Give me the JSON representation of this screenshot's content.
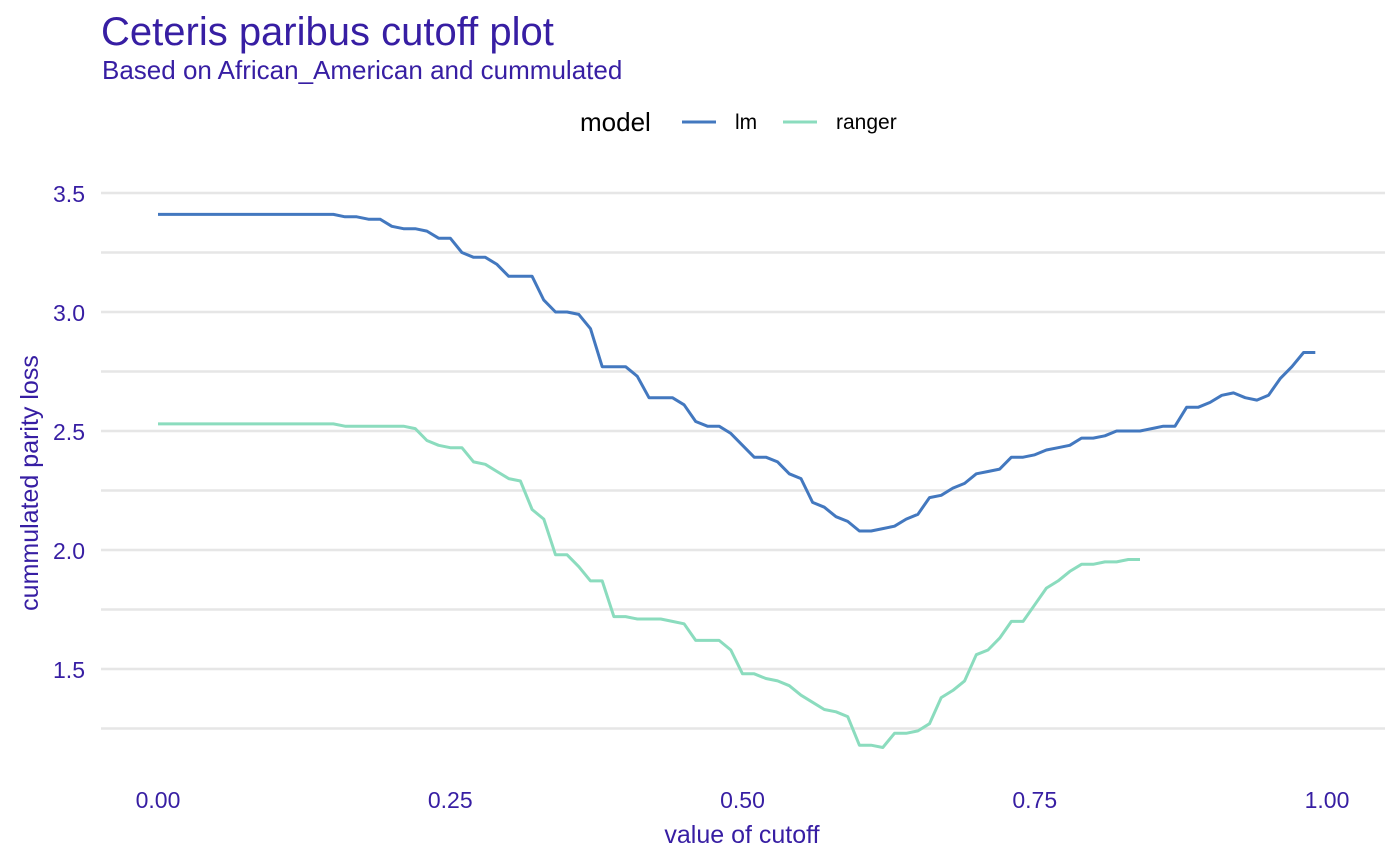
{
  "chart_data": {
    "type": "line",
    "title": "Ceteris paribus cutoff plot",
    "subtitle": "Based on African_American and cummulated",
    "xlabel": "value of cutoff",
    "ylabel": "cummulated parity loss",
    "xlim": [
      0,
      1
    ],
    "ylim": [
      1.15,
      3.55
    ],
    "x_ticks": [
      "0.00",
      "0.25",
      "0.50",
      "0.75",
      "1.00"
    ],
    "y_ticks": [
      "1.5",
      "2.0",
      "2.5",
      "3.0",
      "3.5"
    ],
    "grid": true,
    "legend": {
      "title": "model",
      "position": "top"
    },
    "series": [
      {
        "name": "lm",
        "color": "#4378BF",
        "points": [
          [
            0.0,
            3.41
          ],
          [
            0.15,
            3.41
          ],
          [
            0.16,
            3.4
          ],
          [
            0.17,
            3.4
          ],
          [
            0.18,
            3.39
          ],
          [
            0.19,
            3.39
          ],
          [
            0.2,
            3.36
          ],
          [
            0.21,
            3.35
          ],
          [
            0.22,
            3.35
          ],
          [
            0.23,
            3.34
          ],
          [
            0.24,
            3.31
          ],
          [
            0.25,
            3.31
          ],
          [
            0.26,
            3.25
          ],
          [
            0.27,
            3.23
          ],
          [
            0.28,
            3.23
          ],
          [
            0.29,
            3.2
          ],
          [
            0.3,
            3.15
          ],
          [
            0.31,
            3.15
          ],
          [
            0.32,
            3.15
          ],
          [
            0.33,
            3.05
          ],
          [
            0.34,
            3.0
          ],
          [
            0.35,
            3.0
          ],
          [
            0.36,
            2.99
          ],
          [
            0.37,
            2.93
          ],
          [
            0.38,
            2.77
          ],
          [
            0.39,
            2.77
          ],
          [
            0.4,
            2.77
          ],
          [
            0.41,
            2.73
          ],
          [
            0.42,
            2.64
          ],
          [
            0.43,
            2.64
          ],
          [
            0.44,
            2.64
          ],
          [
            0.45,
            2.61
          ],
          [
            0.46,
            2.54
          ],
          [
            0.47,
            2.52
          ],
          [
            0.48,
            2.52
          ],
          [
            0.49,
            2.49
          ],
          [
            0.5,
            2.44
          ],
          [
            0.51,
            2.39
          ],
          [
            0.52,
            2.39
          ],
          [
            0.53,
            2.37
          ],
          [
            0.54,
            2.32
          ],
          [
            0.55,
            2.3
          ],
          [
            0.56,
            2.2
          ],
          [
            0.57,
            2.18
          ],
          [
            0.58,
            2.14
          ],
          [
            0.59,
            2.12
          ],
          [
            0.6,
            2.08
          ],
          [
            0.61,
            2.08
          ],
          [
            0.62,
            2.09
          ],
          [
            0.63,
            2.1
          ],
          [
            0.64,
            2.13
          ],
          [
            0.65,
            2.15
          ],
          [
            0.66,
            2.22
          ],
          [
            0.67,
            2.23
          ],
          [
            0.68,
            2.26
          ],
          [
            0.69,
            2.28
          ],
          [
            0.7,
            2.32
          ],
          [
            0.71,
            2.33
          ],
          [
            0.72,
            2.34
          ],
          [
            0.73,
            2.39
          ],
          [
            0.74,
            2.39
          ],
          [
            0.75,
            2.4
          ],
          [
            0.76,
            2.42
          ],
          [
            0.77,
            2.43
          ],
          [
            0.78,
            2.44
          ],
          [
            0.79,
            2.47
          ],
          [
            0.8,
            2.47
          ],
          [
            0.81,
            2.48
          ],
          [
            0.82,
            2.5
          ],
          [
            0.83,
            2.5
          ],
          [
            0.84,
            2.5
          ],
          [
            0.85,
            2.51
          ],
          [
            0.86,
            2.52
          ],
          [
            0.87,
            2.52
          ],
          [
            0.88,
            2.6
          ],
          [
            0.89,
            2.6
          ],
          [
            0.9,
            2.62
          ],
          [
            0.91,
            2.65
          ],
          [
            0.92,
            2.66
          ],
          [
            0.93,
            2.64
          ],
          [
            0.94,
            2.63
          ],
          [
            0.95,
            2.65
          ],
          [
            0.96,
            2.72
          ],
          [
            0.97,
            2.77
          ],
          [
            0.98,
            2.83
          ],
          [
            0.99,
            2.83
          ]
        ]
      },
      {
        "name": "ranger",
        "color": "#8BDCBE",
        "points": [
          [
            0.0,
            2.53
          ],
          [
            0.15,
            2.53
          ],
          [
            0.16,
            2.52
          ],
          [
            0.17,
            2.52
          ],
          [
            0.18,
            2.52
          ],
          [
            0.19,
            2.52
          ],
          [
            0.2,
            2.52
          ],
          [
            0.21,
            2.52
          ],
          [
            0.22,
            2.51
          ],
          [
            0.23,
            2.46
          ],
          [
            0.24,
            2.44
          ],
          [
            0.25,
            2.43
          ],
          [
            0.26,
            2.43
          ],
          [
            0.27,
            2.37
          ],
          [
            0.28,
            2.36
          ],
          [
            0.29,
            2.33
          ],
          [
            0.3,
            2.3
          ],
          [
            0.31,
            2.29
          ],
          [
            0.32,
            2.17
          ],
          [
            0.33,
            2.13
          ],
          [
            0.34,
            1.98
          ],
          [
            0.35,
            1.98
          ],
          [
            0.36,
            1.93
          ],
          [
            0.37,
            1.87
          ],
          [
            0.38,
            1.87
          ],
          [
            0.39,
            1.72
          ],
          [
            0.4,
            1.72
          ],
          [
            0.41,
            1.71
          ],
          [
            0.42,
            1.71
          ],
          [
            0.43,
            1.71
          ],
          [
            0.44,
            1.7
          ],
          [
            0.45,
            1.69
          ],
          [
            0.46,
            1.62
          ],
          [
            0.47,
            1.62
          ],
          [
            0.48,
            1.62
          ],
          [
            0.49,
            1.58
          ],
          [
            0.5,
            1.48
          ],
          [
            0.51,
            1.48
          ],
          [
            0.52,
            1.46
          ],
          [
            0.53,
            1.45
          ],
          [
            0.54,
            1.43
          ],
          [
            0.55,
            1.39
          ],
          [
            0.56,
            1.36
          ],
          [
            0.57,
            1.33
          ],
          [
            0.58,
            1.32
          ],
          [
            0.59,
            1.3
          ],
          [
            0.6,
            1.18
          ],
          [
            0.61,
            1.18
          ],
          [
            0.62,
            1.17
          ],
          [
            0.63,
            1.23
          ],
          [
            0.64,
            1.23
          ],
          [
            0.65,
            1.24
          ],
          [
            0.66,
            1.27
          ],
          [
            0.67,
            1.38
          ],
          [
            0.68,
            1.41
          ],
          [
            0.69,
            1.45
          ],
          [
            0.7,
            1.56
          ],
          [
            0.71,
            1.58
          ],
          [
            0.72,
            1.63
          ],
          [
            0.73,
            1.7
          ],
          [
            0.74,
            1.7
          ],
          [
            0.75,
            1.77
          ],
          [
            0.76,
            1.84
          ],
          [
            0.77,
            1.87
          ],
          [
            0.78,
            1.91
          ],
          [
            0.79,
            1.94
          ],
          [
            0.8,
            1.94
          ],
          [
            0.81,
            1.95
          ],
          [
            0.82,
            1.95
          ],
          [
            0.83,
            1.96
          ],
          [
            0.84,
            1.96
          ]
        ]
      }
    ]
  }
}
